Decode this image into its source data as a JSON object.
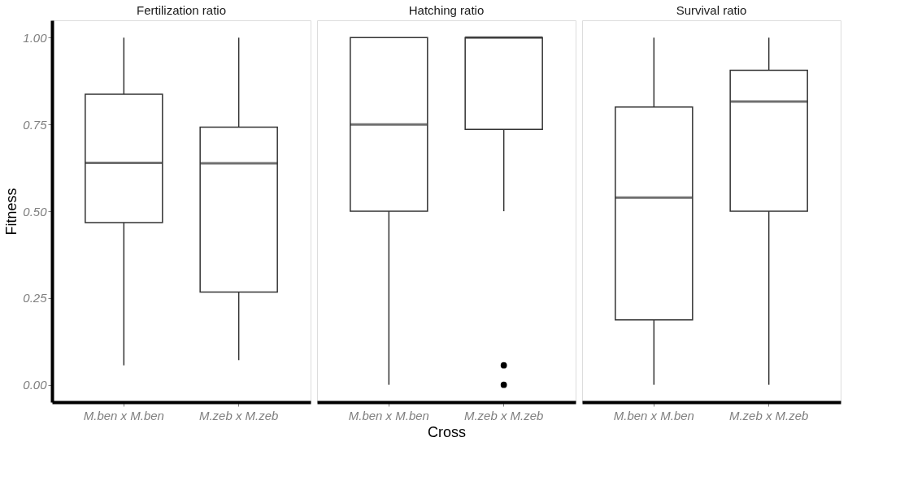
{
  "chart_data": [
    {
      "type": "box",
      "title": "Fertilization ratio",
      "ylabel": "Fitness",
      "categories": [
        "M.ben x M.ben",
        "M.zeb x M.zeb"
      ],
      "boxes": [
        {
          "low": 0.056,
          "q1": 0.467,
          "median": 0.639,
          "q3": 0.837,
          "high": 1.0
        },
        {
          "low": 0.071,
          "q1": 0.267,
          "median": 0.638,
          "q3": 0.742,
          "high": 1.0
        }
      ],
      "ylim": [
        -0.05,
        1.05
      ],
      "yticks": [
        {
          "value": 0,
          "label": "0.00"
        },
        {
          "value": 0.25,
          "label": "0.25"
        },
        {
          "value": 0.5,
          "label": "0.50"
        },
        {
          "value": 0.75,
          "label": "0.75"
        },
        {
          "value": 1,
          "label": "1.00"
        }
      ],
      "grid": false
    },
    {
      "type": "box",
      "title": "Hatching ratio",
      "xlabel": "Cross",
      "categories": [
        "M.ben x M.ben",
        "M.zeb x M.zeb"
      ],
      "boxes": [
        {
          "low": 0.0,
          "q1": 0.5,
          "median": 0.75,
          "q3": 1.0,
          "high": 1.0
        },
        {
          "low": 0.5,
          "q1": 0.736,
          "median": 1.0,
          "q3": 1.0,
          "high": 1.0,
          "outliers": [
            0.056,
            0.0
          ]
        }
      ],
      "ylim": [
        -0.05,
        1.05
      ],
      "tick_labels": "x",
      "grid": false
    },
    {
      "type": "box",
      "title": "Survival ratio",
      "categories": [
        "M.ben x M.ben",
        "M.zeb x M.zeb"
      ],
      "boxes": [
        {
          "low": 0.0,
          "q1": 0.187,
          "median": 0.539,
          "q3": 0.8,
          "high": 1.0
        },
        {
          "low": 0.0,
          "q1": 0.5,
          "median": 0.816,
          "q3": 0.906,
          "high": 1.0
        }
      ],
      "ylim": [
        -0.05,
        1.05
      ],
      "tick_labels": "x",
      "grid": false
    }
  ]
}
